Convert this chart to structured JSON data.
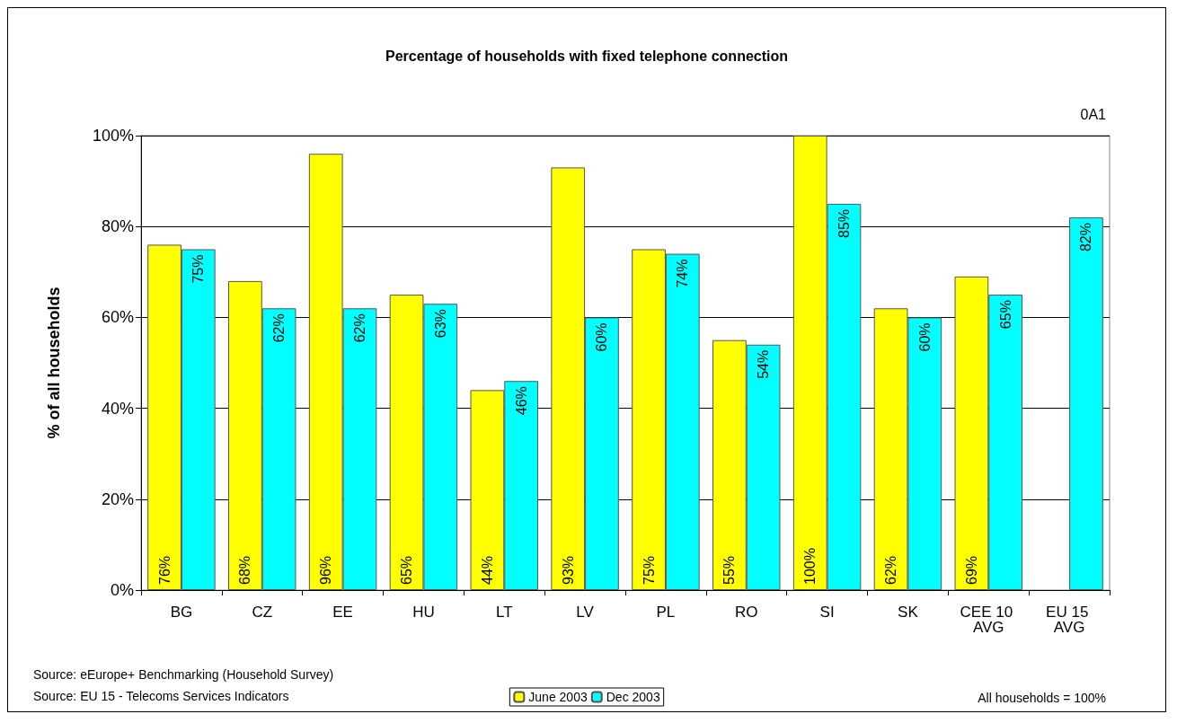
{
  "chart_data": {
    "type": "bar",
    "title": "Percentage of households with fixed telephone connection",
    "ylabel": "% of all households",
    "categories": [
      "BG",
      "CZ",
      "EE",
      "HU",
      "LT",
      "LV",
      "PL",
      "RO",
      "SI",
      "SK",
      "CEE 10 AVG",
      "EU 15 AVG"
    ],
    "series": [
      {
        "name": "June 2003",
        "color": "#ffff00",
        "values": [
          76,
          68,
          96,
          65,
          44,
          93,
          75,
          55,
          100,
          62,
          69,
          null
        ],
        "value_labels": [
          "76%",
          "68%",
          "96%",
          "65%",
          "44%",
          "93%",
          "75%",
          "55%",
          "100%",
          "62%",
          "69%",
          null
        ]
      },
      {
        "name": "Dec 2003",
        "color": "#00ffff",
        "values": [
          75,
          62,
          62,
          63,
          46,
          60,
          74,
          54,
          85,
          60,
          65,
          82
        ],
        "value_labels": [
          "75%",
          "62%",
          "62%",
          "63%",
          "46%",
          "60%",
          "74%",
          "54%",
          "85%",
          "60%",
          "65%",
          "82%"
        ]
      }
    ],
    "ylim": [
      0,
      100
    ],
    "yticks": [
      {
        "value": 0,
        "label": "0%"
      },
      {
        "value": 20,
        "label": "20%"
      },
      {
        "value": 40,
        "label": "40%"
      },
      {
        "value": 60,
        "label": "60%"
      },
      {
        "value": 80,
        "label": "80%"
      },
      {
        "value": 100,
        "label": "100%"
      }
    ],
    "grid": "y",
    "legend": "bottom",
    "annotations": [
      "0A1",
      "Source: eEurope+ Benchmarking (Household Survey)",
      "Source: EU 15 - Telecoms Services Indicators",
      "All households = 100%"
    ]
  }
}
